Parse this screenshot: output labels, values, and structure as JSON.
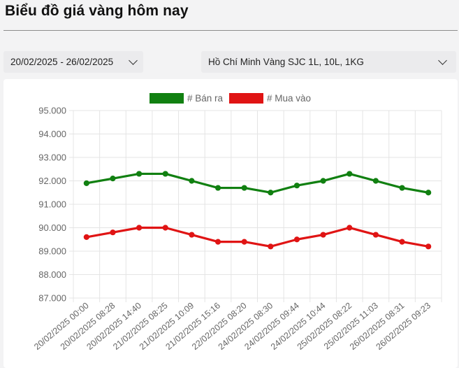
{
  "page": {
    "title": "Biểu đồ giá vàng hôm nay"
  },
  "filters": {
    "date_range": "20/02/2025 - 26/02/2025",
    "gold_type": "Hồ Chí Minh Vàng SJC 1L, 10L, 1KG",
    "chevron_icon": "chevron-down-icon"
  },
  "chart_data": {
    "type": "line",
    "categories": [
      "20/02/2025 00:00",
      "20/02/2025 08:28",
      "20/02/2025 14:40",
      "21/02/2025 08:25",
      "21/02/2025 10:09",
      "21/02/2025 15:16",
      "22/02/2025 08:20",
      "24/02/2025 08:30",
      "24/02/2025 09:44",
      "24/02/2025 10:44",
      "25/02/2025 08:22",
      "25/02/2025 11:03",
      "26/02/2025 08:31",
      "26/02/2025 09:23"
    ],
    "series": [
      {
        "name": "# Bán ra",
        "color": "#118011",
        "values": [
          91900,
          92100,
          92300,
          92300,
          92000,
          91700,
          91700,
          91500,
          91800,
          92000,
          92300,
          92000,
          91700,
          91500
        ]
      },
      {
        "name": "# Mua vào",
        "color": "#e01414",
        "values": [
          89600,
          89800,
          90000,
          90000,
          89700,
          89400,
          89400,
          89200,
          89500,
          89700,
          90000,
          89700,
          89400,
          89200
        ]
      }
    ],
    "yticks": [
      "95.000",
      "94.000",
      "93.000",
      "92.000",
      "91.000",
      "90.000",
      "89.000",
      "88.000",
      "87.000"
    ],
    "ylim": [
      87000,
      95000
    ],
    "title": "",
    "xlabel": "",
    "ylabel": "",
    "grid": true,
    "legend_position": "top-center"
  }
}
